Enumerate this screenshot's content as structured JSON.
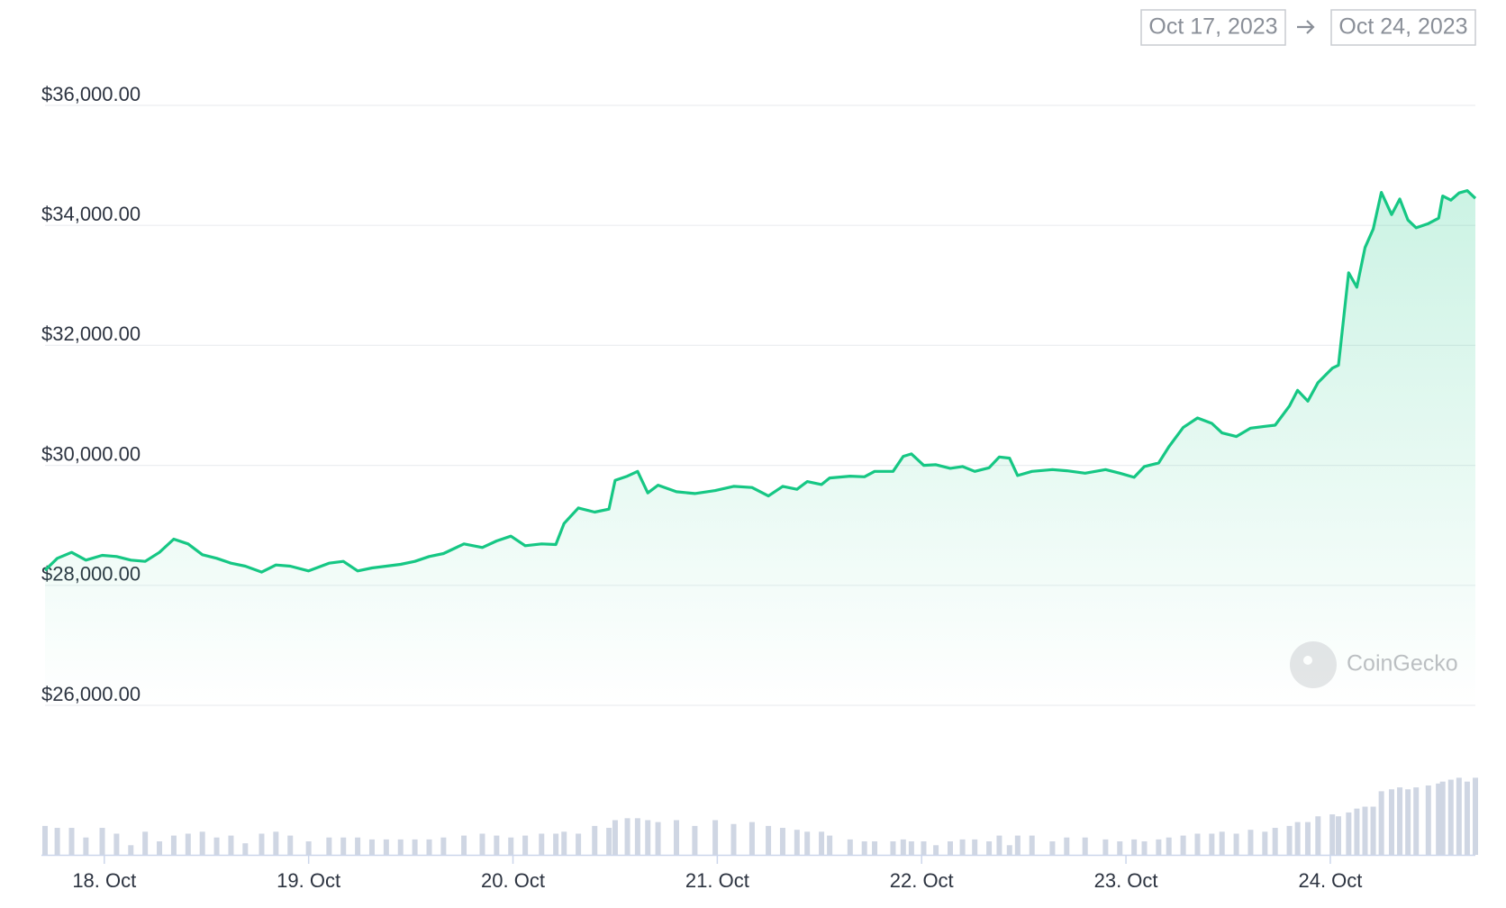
{
  "date_range": {
    "from": "Oct 17, 2023",
    "to": "Oct 24, 2023"
  },
  "watermark": "CoinGecko",
  "chart_data": {
    "type": "line",
    "x": [
      17.71,
      17.77,
      17.84,
      17.91,
      17.99,
      18.06,
      18.13,
      18.2,
      18.27,
      18.34,
      18.41,
      18.48,
      18.55,
      18.62,
      18.69,
      18.77,
      18.84,
      18.91,
      19.0,
      19.1,
      19.17,
      19.24,
      19.31,
      19.38,
      19.45,
      19.52,
      19.59,
      19.66,
      19.76,
      19.85,
      19.92,
      19.99,
      20.06,
      20.14,
      20.21,
      20.25,
      20.32,
      20.4,
      20.47,
      20.5,
      20.56,
      20.61,
      20.66,
      20.71,
      20.8,
      20.89,
      20.99,
      21.08,
      21.17,
      21.25,
      21.32,
      21.39,
      21.44,
      21.51,
      21.55,
      21.65,
      21.72,
      21.77,
      21.86,
      21.91,
      21.95,
      22.01,
      22.07,
      22.14,
      22.2,
      22.26,
      22.33,
      22.38,
      22.43,
      22.47,
      22.54,
      22.64,
      22.71,
      22.8,
      22.9,
      22.97,
      23.04,
      23.09,
      23.16,
      23.21,
      23.28,
      23.35,
      23.42,
      23.47,
      23.54,
      23.61,
      23.68,
      23.73,
      23.8,
      23.84,
      23.89,
      23.94,
      24.01,
      24.04,
      24.09,
      24.13,
      24.17,
      24.21,
      24.25,
      24.3,
      24.34,
      24.38,
      24.42,
      24.48,
      24.53,
      24.55,
      24.59,
      24.63,
      24.67,
      24.71
    ],
    "series": [
      {
        "color": "#16c784",
        "values": [
          28250,
          28450,
          28550,
          28420,
          28500,
          28480,
          28420,
          28400,
          28550,
          28770,
          28690,
          28510,
          28450,
          28370,
          28320,
          28220,
          28340,
          28320,
          28240,
          28370,
          28400,
          28240,
          28290,
          28320,
          28350,
          28400,
          28480,
          28530,
          28690,
          28630,
          28740,
          28820,
          28660,
          28690,
          28680,
          29030,
          29290,
          29220,
          29270,
          29750,
          29820,
          29900,
          29540,
          29670,
          29560,
          29530,
          29580,
          29650,
          29630,
          29490,
          29650,
          29600,
          29730,
          29680,
          29790,
          29820,
          29810,
          29900,
          29900,
          30150,
          30190,
          30000,
          30010,
          29950,
          29980,
          29900,
          29960,
          30140,
          30120,
          29830,
          29900,
          29930,
          29910,
          29870,
          29930,
          29870,
          29800,
          29980,
          30040,
          30310,
          30630,
          30790,
          30700,
          30540,
          30480,
          30620,
          30650,
          30670,
          30990,
          31250,
          31070,
          31380,
          31620,
          31670,
          33210,
          32970,
          33630,
          33940,
          34550,
          34180,
          34440,
          34090,
          33960,
          34030,
          34120,
          34490,
          34420,
          34540,
          34580,
          34450
        ]
      }
    ],
    "volume": {
      "color": "#cfd6e3",
      "lim": [
        0,
        100
      ],
      "values": [
        30,
        28,
        28,
        18,
        28,
        22,
        10,
        24,
        14,
        20,
        22,
        24,
        18,
        20,
        12,
        22,
        24,
        20,
        14,
        18,
        18,
        18,
        16,
        16,
        16,
        16,
        16,
        18,
        20,
        22,
        20,
        18,
        20,
        22,
        22,
        24,
        22,
        30,
        28,
        36,
        38,
        38,
        36,
        34,
        36,
        30,
        36,
        32,
        34,
        30,
        28,
        26,
        24,
        24,
        20,
        16,
        14,
        14,
        14,
        16,
        14,
        14,
        10,
        14,
        16,
        16,
        14,
        20,
        10,
        20,
        20,
        14,
        18,
        18,
        16,
        14,
        16,
        14,
        16,
        18,
        20,
        22,
        22,
        24,
        22,
        26,
        24,
        28,
        30,
        34,
        34,
        40,
        42,
        40,
        44,
        48,
        50,
        50,
        66,
        68,
        70,
        68,
        70,
        72,
        74,
        76,
        78,
        80,
        76,
        80
      ]
    },
    "xlim": [
      17.71,
      24.71
    ],
    "xticks": [
      {
        "value": 18,
        "label": "18. Oct"
      },
      {
        "value": 19,
        "label": "19. Oct"
      },
      {
        "value": 20,
        "label": "20. Oct"
      },
      {
        "value": 21,
        "label": "21. Oct"
      },
      {
        "value": 22,
        "label": "22. Oct"
      },
      {
        "value": 23,
        "label": "23. Oct"
      },
      {
        "value": 24,
        "label": "24. Oct"
      }
    ],
    "ylim": [
      26000,
      36000
    ],
    "yticks": [
      {
        "value": 26000,
        "label": "$26,000.00"
      },
      {
        "value": 28000,
        "label": "$28,000.00"
      },
      {
        "value": 30000,
        "label": "$30,000.00"
      },
      {
        "value": 32000,
        "label": "$32,000.00"
      },
      {
        "value": 34000,
        "label": "$34,000.00"
      },
      {
        "value": 36000,
        "label": "$36,000.00"
      }
    ],
    "grid": true
  }
}
